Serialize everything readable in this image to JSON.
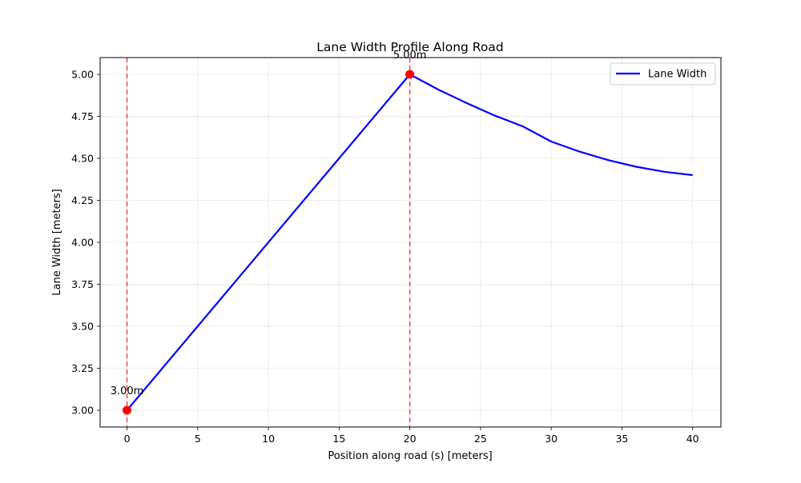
{
  "chart_data": {
    "type": "line",
    "title": "Lane Width Profile Along Road",
    "xlabel": "Position along road (s) [meters]",
    "ylabel": "Lane Width [meters]",
    "xlim": [
      -1.9,
      42.0
    ],
    "ylim": [
      2.9,
      5.1
    ],
    "x_ticks": [
      0,
      5,
      10,
      15,
      20,
      25,
      30,
      35,
      40
    ],
    "y_ticks": [
      3.0,
      3.25,
      3.5,
      3.75,
      4.0,
      4.25,
      4.5,
      4.75,
      5.0
    ],
    "x_tick_labels": [
      "0",
      "5",
      "10",
      "15",
      "20",
      "25",
      "30",
      "35",
      "40"
    ],
    "y_tick_labels": [
      "3.00",
      "3.25",
      "3.50",
      "3.75",
      "4.00",
      "4.25",
      "4.50",
      "4.75",
      "5.00"
    ],
    "grid": true,
    "legend_position": "top-right",
    "series": [
      {
        "name": "Lane Width",
        "color": "#0000ff",
        "x": [
          0,
          20,
          22,
          24,
          26,
          28,
          30,
          32,
          34,
          36,
          38,
          40
        ],
        "y": [
          3.0,
          5.0,
          4.91,
          4.83,
          4.755,
          4.69,
          4.6,
          4.54,
          4.49,
          4.45,
          4.42,
          4.4
        ]
      }
    ],
    "markers": [
      {
        "x": 0,
        "y": 3.0,
        "label": "3.00m",
        "color": "#ff0000"
      },
      {
        "x": 20,
        "y": 5.0,
        "label": "5.00m",
        "color": "#ff0000"
      }
    ],
    "vlines": [
      {
        "x": 0,
        "color": "#ff0000",
        "style": "dashed"
      },
      {
        "x": 20,
        "color": "#ff0000",
        "style": "dashed"
      }
    ]
  }
}
